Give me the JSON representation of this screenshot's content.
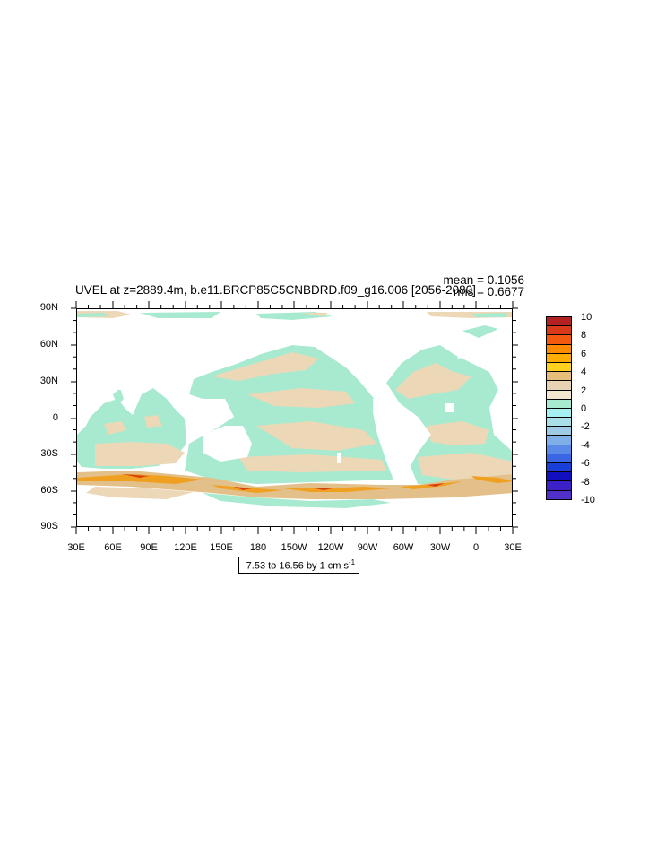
{
  "title": "UVEL at z=2889.4m, b.e11.BRCP85C5CNBDRD.f09_g16.006 [2056-2080]",
  "stats": {
    "mean": "mean = 0.1056",
    "rms": "rms = 0.6677"
  },
  "lat_labels": [
    "90N",
    "60N",
    "30N",
    "0",
    "30S",
    "60S",
    "90S"
  ],
  "lon_labels": [
    "30E",
    "60E",
    "90E",
    "120E",
    "150E",
    "180",
    "150W",
    "120W",
    "90W",
    "60W",
    "30W",
    "0",
    "30E"
  ],
  "range_text": "-7.53 to 16.56 by 1 cm s",
  "range_exp": "-1",
  "colorbar": {
    "labels": [
      "10",
      "8",
      "6",
      "4",
      "2",
      "0",
      "-2",
      "-4",
      "-6",
      "-8",
      "-10"
    ],
    "colors": [
      "#b22222",
      "#d93a1a",
      "#f25a0f",
      "#ff8c00",
      "#ffad00",
      "#ffd21f",
      "#e6bd7a",
      "#e7d2b3",
      "#f5e7cf",
      "#a8ead0",
      "#a5f0f0",
      "#a8dfe8",
      "#9ecbe3",
      "#80aee8",
      "#5a8ae8",
      "#3a66e6",
      "#1a3fd8",
      "#1010c0",
      "#3c20c8",
      "#5030c8"
    ]
  },
  "legend_colors": {
    "land": "#ffffff",
    "neg_small": "#a8ead0",
    "pos_small": "#ecd8b6",
    "pos_mid": "#e3c08a",
    "pos_high": "#f0a020",
    "pos_max": "#d9400f"
  }
}
